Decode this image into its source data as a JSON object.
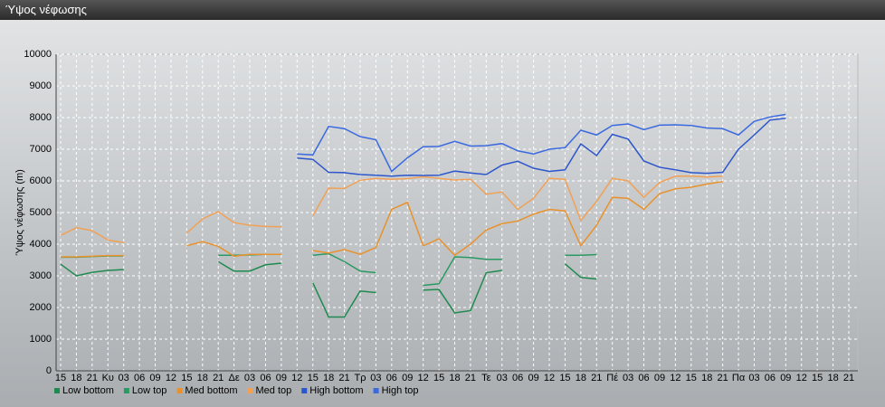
{
  "chart_data": {
    "type": "line",
    "title": "Ύψος νέφωσης",
    "y_label": "Ύψος νέφωσης (m)",
    "categories": [
      "15",
      "18",
      "21",
      "Κυ",
      "03",
      "06",
      "09",
      "12",
      "15",
      "18",
      "21",
      "Δε",
      "03",
      "06",
      "09",
      "12",
      "15",
      "18",
      "21",
      "Τρ",
      "03",
      "06",
      "09",
      "12",
      "15",
      "18",
      "21",
      "Τε",
      "03",
      "06",
      "09",
      "12",
      "15",
      "18",
      "21",
      "Πέ",
      "03",
      "06",
      "09",
      "12",
      "15",
      "18",
      "21",
      "Πα",
      "03",
      "06",
      "09",
      "12",
      "15",
      "18",
      "21"
    ],
    "ylim": [
      0,
      10000
    ],
    "yticks": [
      0,
      1000,
      2000,
      3000,
      4000,
      5000,
      6000,
      7000,
      8000,
      9000,
      10000
    ],
    "grid": true,
    "legend_position": "bottom",
    "series": [
      {
        "name": "Low bottom",
        "color": "#1f8a50",
        "values": [
          3370,
          3000,
          3110,
          3170,
          3200,
          null,
          null,
          null,
          null,
          null,
          3450,
          3150,
          3150,
          3350,
          3400,
          null,
          2780,
          1700,
          1700,
          2520,
          2470,
          null,
          null,
          2550,
          2570,
          1830,
          1900,
          3100,
          3170,
          null,
          null,
          null,
          3380,
          2950,
          2900,
          null,
          null,
          null,
          null,
          null,
          null,
          null,
          null,
          null,
          null,
          null,
          null,
          null,
          null,
          null,
          null
        ]
      },
      {
        "name": "Low top",
        "color": "#2a9a62",
        "values": [
          3590,
          3590,
          3610,
          3630,
          3630,
          null,
          null,
          null,
          null,
          null,
          3650,
          3650,
          3660,
          3680,
          3680,
          null,
          3650,
          3700,
          3450,
          3150,
          3100,
          null,
          null,
          2700,
          2750,
          3600,
          3580,
          3520,
          3520,
          null,
          null,
          null,
          3650,
          3650,
          3670,
          null,
          null,
          null,
          null,
          null,
          null,
          null,
          null,
          null,
          null,
          null,
          null,
          null,
          null,
          null,
          null
        ]
      },
      {
        "name": "Med bottom",
        "color": "#e8922e",
        "values": [
          3600,
          3600,
          3620,
          3640,
          3640,
          null,
          null,
          null,
          3950,
          4080,
          3930,
          3620,
          3680,
          3680,
          3680,
          null,
          3800,
          3720,
          3830,
          3680,
          3900,
          5100,
          5320,
          3950,
          4170,
          3650,
          4000,
          4450,
          4650,
          4730,
          4950,
          5100,
          5050,
          3950,
          4600,
          5480,
          5450,
          5100,
          5600,
          5750,
          5800,
          5900,
          5980,
          null,
          null,
          null,
          null,
          null,
          null,
          null,
          null
        ]
      },
      {
        "name": "Med top",
        "color": "#f0a155",
        "values": [
          4280,
          4520,
          4430,
          4130,
          4050,
          null,
          null,
          null,
          4350,
          4800,
          5030,
          4680,
          4600,
          4560,
          4550,
          null,
          4900,
          5770,
          5760,
          6020,
          6080,
          6050,
          6070,
          6130,
          6080,
          6030,
          6050,
          5580,
          5650,
          5100,
          5450,
          6080,
          6050,
          4750,
          5350,
          6080,
          6000,
          5480,
          5950,
          6150,
          6150,
          6120,
          6150,
          null,
          null,
          null,
          null,
          null,
          null,
          null,
          null
        ]
      },
      {
        "name": "High bottom",
        "color": "#2c56cc",
        "values": [
          null,
          null,
          null,
          null,
          null,
          null,
          null,
          null,
          null,
          null,
          null,
          null,
          null,
          null,
          null,
          6720,
          6680,
          6270,
          6260,
          6200,
          6180,
          6150,
          6180,
          6170,
          6180,
          6310,
          6250,
          6200,
          6500,
          6620,
          6400,
          6300,
          6350,
          7170,
          6800,
          7470,
          7320,
          6630,
          6430,
          6350,
          6260,
          6240,
          6270,
          7000,
          7450,
          7920,
          7980,
          null,
          null,
          null,
          null
        ]
      },
      {
        "name": "High top",
        "color": "#3b6ae0",
        "values": [
          null,
          null,
          null,
          null,
          null,
          null,
          null,
          null,
          null,
          null,
          null,
          null,
          null,
          null,
          null,
          6850,
          6820,
          7720,
          7650,
          7400,
          7300,
          6300,
          6730,
          7080,
          7090,
          7250,
          7100,
          7110,
          7180,
          6950,
          6850,
          7000,
          7050,
          7600,
          7450,
          7750,
          7800,
          7620,
          7760,
          7770,
          7750,
          7670,
          7650,
          7450,
          7880,
          8020,
          8100,
          null,
          null,
          null,
          null
        ]
      }
    ]
  }
}
